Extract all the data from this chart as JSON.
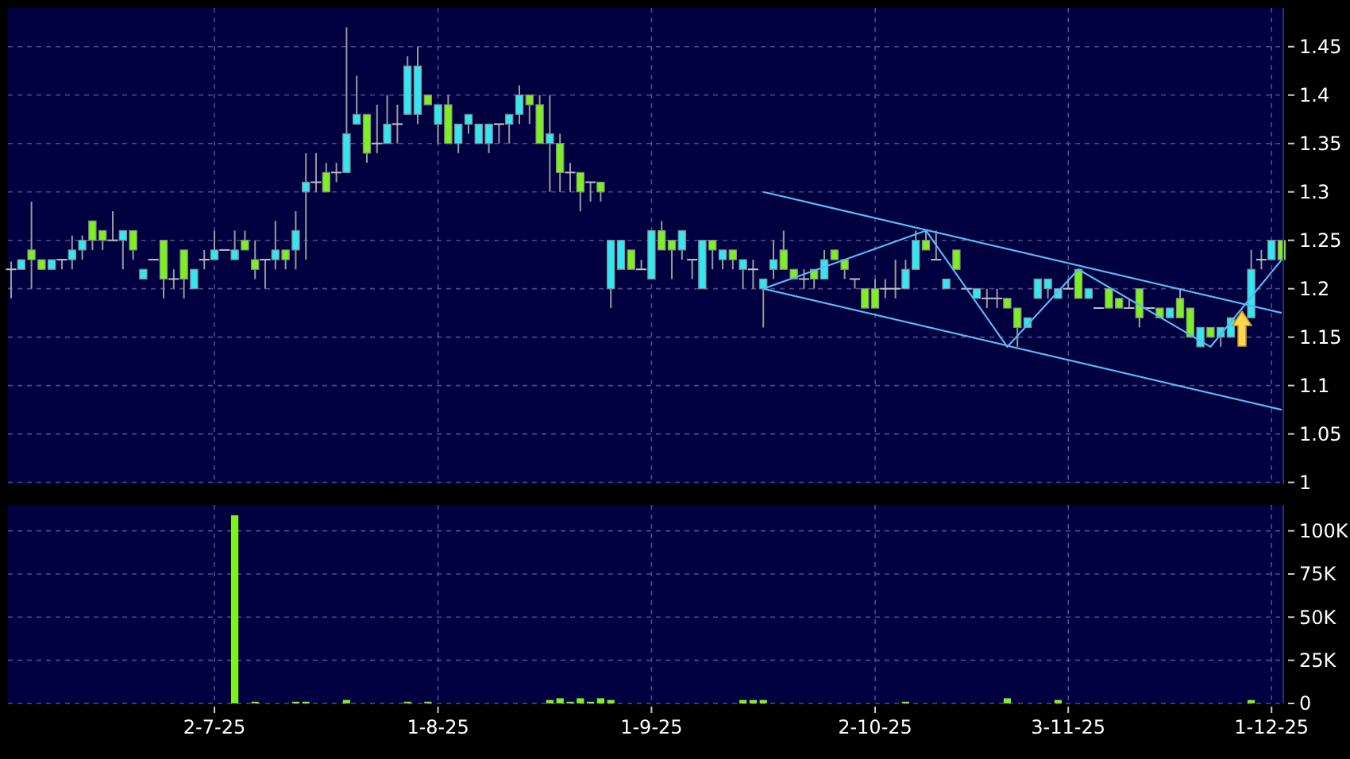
{
  "chart_data": [
    {
      "type": "candlestick",
      "categories": [
        null,
        null,
        null,
        null,
        null,
        null,
        null,
        null,
        null,
        null,
        null,
        null,
        null,
        null,
        null,
        null,
        null,
        null,
        null,
        null,
        null,
        null,
        null,
        null,
        null,
        null,
        null,
        null,
        null,
        null,
        null,
        null,
        null,
        null,
        null,
        null,
        null,
        null,
        null,
        null,
        null,
        null,
        null,
        null,
        null,
        null,
        null,
        null,
        null,
        null,
        null,
        null,
        null,
        null,
        null,
        null,
        null,
        null,
        null,
        null,
        null,
        null,
        null,
        null,
        null,
        null,
        null,
        null,
        null,
        null,
        null,
        null,
        null,
        null,
        null,
        null,
        null,
        null,
        null,
        null,
        null,
        null,
        null,
        null,
        null,
        null,
        null,
        null,
        null,
        null,
        null,
        null,
        null,
        null,
        null,
        null,
        null,
        null,
        null,
        null,
        null,
        null,
        null,
        null,
        null,
        null,
        null,
        null,
        null,
        null,
        null,
        null,
        null,
        null,
        null,
        null,
        null,
        null,
        null,
        null,
        null,
        null,
        null,
        null,
        null,
        null
      ],
      "ohlc": [
        [
          1.22,
          1.228,
          1.19,
          1.22
        ],
        [
          1.22,
          1.23,
          1.22,
          1.23
        ],
        [
          1.24,
          1.29,
          1.2,
          1.23
        ],
        [
          1.23,
          1.23,
          1.22,
          1.22
        ],
        [
          1.22,
          1.23,
          1.22,
          1.23
        ],
        [
          1.23,
          1.23,
          1.22,
          1.23
        ],
        [
          1.23,
          1.255,
          1.22,
          1.24
        ],
        [
          1.24,
          1.255,
          1.23,
          1.25
        ],
        [
          1.27,
          1.27,
          1.24,
          1.25
        ],
        [
          1.26,
          1.26,
          1.24,
          1.25
        ],
        [
          1.25,
          1.28,
          1.25,
          1.25
        ],
        [
          1.25,
          1.26,
          1.22,
          1.26
        ],
        [
          1.26,
          1.26,
          1.23,
          1.24
        ],
        [
          1.21,
          1.22,
          1.21,
          1.22
        ],
        [
          1.23,
          1.23,
          1.23,
          1.23
        ],
        [
          1.25,
          1.25,
          1.19,
          1.21
        ],
        [
          1.21,
          1.22,
          1.2,
          1.21
        ],
        [
          1.24,
          1.24,
          1.19,
          1.21
        ],
        [
          1.2,
          1.22,
          1.2,
          1.22
        ],
        [
          1.23,
          1.24,
          1.22,
          1.23
        ],
        [
          1.23,
          1.26,
          1.23,
          1.24
        ],
        [
          1.24,
          1.24,
          1.24,
          1.24
        ],
        [
          1.23,
          1.26,
          1.23,
          1.24
        ],
        [
          1.25,
          1.26,
          1.24,
          1.24
        ],
        [
          1.23,
          1.25,
          1.21,
          1.22
        ],
        [
          1.23,
          1.23,
          1.2,
          1.23
        ],
        [
          1.23,
          1.27,
          1.22,
          1.24
        ],
        [
          1.24,
          1.24,
          1.22,
          1.23
        ],
        [
          1.24,
          1.28,
          1.22,
          1.26
        ],
        [
          1.3,
          1.34,
          1.23,
          1.31
        ],
        [
          1.31,
          1.34,
          1.3,
          1.31
        ],
        [
          1.32,
          1.33,
          1.3,
          1.3
        ],
        [
          1.32,
          1.33,
          1.31,
          1.32
        ],
        [
          1.32,
          1.47,
          1.32,
          1.36
        ],
        [
          1.37,
          1.42,
          1.37,
          1.38
        ],
        [
          1.38,
          1.38,
          1.33,
          1.34
        ],
        [
          1.35,
          1.39,
          1.34,
          1.35
        ],
        [
          1.35,
          1.4,
          1.35,
          1.37
        ],
        [
          1.37,
          1.39,
          1.35,
          1.37
        ],
        [
          1.38,
          1.44,
          1.38,
          1.43
        ],
        [
          1.38,
          1.45,
          1.37,
          1.43
        ],
        [
          1.4,
          1.4,
          1.39,
          1.39
        ],
        [
          1.37,
          1.39,
          1.35,
          1.39
        ],
        [
          1.39,
          1.4,
          1.35,
          1.35
        ],
        [
          1.35,
          1.37,
          1.34,
          1.37
        ],
        [
          1.37,
          1.38,
          1.36,
          1.38
        ],
        [
          1.35,
          1.37,
          1.35,
          1.37
        ],
        [
          1.35,
          1.37,
          1.34,
          1.37
        ],
        [
          1.37,
          1.37,
          1.35,
          1.37
        ],
        [
          1.37,
          1.38,
          1.35,
          1.38
        ],
        [
          1.38,
          1.41,
          1.37,
          1.4
        ],
        [
          1.4,
          1.4,
          1.37,
          1.39
        ],
        [
          1.39,
          1.4,
          1.35,
          1.35
        ],
        [
          1.35,
          1.4,
          1.3,
          1.36
        ],
        [
          1.35,
          1.36,
          1.3,
          1.32
        ],
        [
          1.32,
          1.33,
          1.3,
          1.32
        ],
        [
          1.32,
          1.32,
          1.28,
          1.3
        ],
        [
          1.31,
          1.31,
          1.29,
          1.31
        ],
        [
          1.31,
          1.31,
          1.29,
          1.3
        ],
        [
          1.2,
          1.25,
          1.18,
          1.25
        ],
        [
          1.22,
          1.25,
          1.22,
          1.25
        ],
        [
          1.24,
          1.24,
          1.22,
          1.22
        ],
        [
          1.22,
          1.23,
          1.22,
          1.22
        ],
        [
          1.21,
          1.26,
          1.21,
          1.26
        ],
        [
          1.26,
          1.27,
          1.24,
          1.24
        ],
        [
          1.25,
          1.25,
          1.21,
          1.24
        ],
        [
          1.24,
          1.26,
          1.23,
          1.26
        ],
        [
          1.23,
          1.23,
          1.21,
          1.23
        ],
        [
          1.2,
          1.25,
          1.2,
          1.25
        ],
        [
          1.25,
          1.25,
          1.22,
          1.24
        ],
        [
          1.23,
          1.24,
          1.22,
          1.24
        ],
        [
          1.24,
          1.24,
          1.22,
          1.23
        ],
        [
          1.22,
          1.23,
          1.2,
          1.23
        ],
        [
          1.22,
          1.23,
          1.2,
          1.22
        ],
        [
          1.2,
          1.21,
          1.16,
          1.21
        ],
        [
          1.22,
          1.25,
          1.21,
          1.23
        ],
        [
          1.24,
          1.26,
          1.22,
          1.22
        ],
        [
          1.22,
          1.22,
          1.21,
          1.21
        ],
        [
          1.21,
          1.22,
          1.2,
          1.21
        ],
        [
          1.22,
          1.22,
          1.2,
          1.21
        ],
        [
          1.21,
          1.24,
          1.21,
          1.23
        ],
        [
          1.24,
          1.24,
          1.23,
          1.23
        ],
        [
          1.23,
          1.23,
          1.21,
          1.22
        ],
        [
          1.21,
          1.21,
          1.2,
          1.21
        ],
        [
          1.2,
          1.2,
          1.18,
          1.18
        ],
        [
          1.2,
          1.21,
          1.18,
          1.18
        ],
        [
          1.2,
          1.21,
          1.19,
          1.2
        ],
        [
          1.2,
          1.23,
          1.19,
          1.2
        ],
        [
          1.2,
          1.23,
          1.2,
          1.22
        ],
        [
          1.22,
          1.26,
          1.22,
          1.25
        ],
        [
          1.25,
          1.26,
          1.24,
          1.24
        ],
        [
          1.23,
          1.26,
          1.23,
          1.23
        ],
        [
          1.2,
          1.21,
          1.2,
          1.21
        ],
        [
          1.24,
          1.24,
          1.22,
          1.22
        ],
        [
          1.2,
          1.2,
          1.2,
          1.2
        ],
        [
          1.19,
          1.2,
          1.19,
          1.2
        ],
        [
          1.19,
          1.2,
          1.18,
          1.19
        ],
        [
          1.19,
          1.2,
          1.18,
          1.19
        ],
        [
          1.19,
          1.19,
          1.18,
          1.18
        ],
        [
          1.18,
          1.18,
          1.14,
          1.16
        ],
        [
          1.16,
          1.17,
          1.16,
          1.17
        ],
        [
          1.19,
          1.21,
          1.19,
          1.21
        ],
        [
          1.2,
          1.21,
          1.19,
          1.21
        ],
        [
          1.19,
          1.2,
          1.19,
          1.2
        ],
        [
          1.2,
          1.21,
          1.2,
          1.2
        ],
        [
          1.22,
          1.22,
          1.19,
          1.19
        ],
        [
          1.19,
          1.2,
          1.19,
          1.2
        ],
        [
          1.18,
          1.18,
          1.18,
          1.18
        ],
        [
          1.2,
          1.2,
          1.18,
          1.18
        ],
        [
          1.19,
          1.19,
          1.18,
          1.18
        ],
        [
          1.18,
          1.19,
          1.18,
          1.18
        ],
        [
          1.2,
          1.2,
          1.16,
          1.17
        ],
        [
          1.18,
          1.18,
          1.18,
          1.18
        ],
        [
          1.18,
          1.18,
          1.17,
          1.17
        ],
        [
          1.17,
          1.18,
          1.17,
          1.18
        ],
        [
          1.19,
          1.2,
          1.17,
          1.17
        ],
        [
          1.18,
          1.18,
          1.15,
          1.15
        ],
        [
          1.14,
          1.16,
          1.14,
          1.16
        ],
        [
          1.16,
          1.16,
          1.15,
          1.15
        ],
        [
          1.15,
          1.16,
          1.14,
          1.16
        ],
        [
          1.15,
          1.17,
          1.15,
          1.17
        ],
        null,
        [
          1.17,
          1.24,
          1.17,
          1.22
        ],
        [
          1.23,
          1.24,
          1.22,
          1.23
        ],
        [
          1.23,
          1.25,
          1.23,
          1.25
        ],
        [
          1.25,
          1.25,
          1.23,
          1.23
        ]
      ],
      "colors": [
        "#c0c0c0",
        "#33e6f0",
        "#7cf020",
        "#7cf020",
        "#33e6f0",
        "#c0c0c0",
        "#33e6f0",
        "#33e6f0",
        "#7cf020",
        "#7cf020",
        "#c0c0c0",
        "#33e6f0",
        "#7cf020",
        "#33e6f0",
        "#c0c0c0",
        "#7cf020",
        "#c0c0c0",
        "#7cf020",
        "#33e6f0",
        "#c0c0c0",
        "#33e6f0",
        "#c0c0c0",
        "#33e6f0",
        "#7cf020",
        "#7cf020",
        "#c0c0c0",
        "#33e6f0",
        "#7cf020",
        "#33e6f0",
        "#33e6f0",
        "#c0c0c0",
        "#7cf020",
        "#c0c0c0",
        "#33e6f0",
        "#33e6f0",
        "#7cf020",
        "#c0c0c0",
        "#33e6f0",
        "#c0c0c0",
        "#33e6f0",
        "#33e6f0",
        "#7cf020",
        "#33e6f0",
        "#7cf020",
        "#33e6f0",
        "#33e6f0",
        "#33e6f0",
        "#33e6f0",
        "#c0c0c0",
        "#33e6f0",
        "#33e6f0",
        "#7cf020",
        "#7cf020",
        "#33e6f0",
        "#7cf020",
        "#c0c0c0",
        "#7cf020",
        "#c0c0c0",
        "#7cf020",
        "#33e6f0",
        "#33e6f0",
        "#7cf020",
        "#c0c0c0",
        "#33e6f0",
        "#7cf020",
        "#7cf020",
        "#33e6f0",
        "#c0c0c0",
        "#33e6f0",
        "#7cf020",
        "#33e6f0",
        "#7cf020",
        "#33e6f0",
        "#c0c0c0",
        "#33e6f0",
        "#33e6f0",
        "#7cf020",
        "#7cf020",
        "#c0c0c0",
        "#7cf020",
        "#33e6f0",
        "#7cf020",
        "#7cf020",
        "#c0c0c0",
        "#7cf020",
        "#7cf020",
        "#c0c0c0",
        "#c0c0c0",
        "#33e6f0",
        "#33e6f0",
        "#7cf020",
        "#c0c0c0",
        "#33e6f0",
        "#7cf020",
        "#c0c0c0",
        "#33e6f0",
        "#c0c0c0",
        "#c0c0c0",
        "#7cf020",
        "#7cf020",
        "#33e6f0",
        "#33e6f0",
        "#33e6f0",
        "#33e6f0",
        "#c0c0c0",
        "#7cf020",
        "#33e6f0",
        "#c0c0c0",
        "#7cf020",
        "#7cf020",
        "#c0c0c0",
        "#7cf020",
        "#c0c0c0",
        "#7cf020",
        "#33e6f0",
        "#7cf020",
        "#7cf020",
        "#33e6f0",
        "#7cf020",
        "#33e6f0",
        "#33e6f0",
        null,
        "#33e6f0",
        "#c0c0c0",
        "#33e6f0",
        "#7cf020"
      ],
      "series": [
        {
          "type": "line",
          "color": "#5ab8f0",
          "values": [
            null,
            null,
            null,
            null,
            null,
            null,
            null,
            null,
            null,
            null,
            null,
            null,
            null,
            null,
            null,
            null,
            null,
            null,
            null,
            null,
            null,
            null,
            null,
            null,
            null,
            null,
            null,
            null,
            null,
            null,
            null,
            null,
            null,
            null,
            null,
            null,
            null,
            null,
            null,
            null,
            null,
            null,
            null,
            null,
            null,
            null,
            null,
            null,
            null,
            null,
            null,
            null,
            null,
            null,
            null,
            null,
            null,
            null,
            null,
            null,
            null,
            null,
            null,
            null,
            null,
            null,
            null,
            null,
            null,
            null,
            null,
            null,
            null,
            null,
            1.3,
            null,
            null,
            null,
            null,
            null,
            null,
            null,
            null,
            null,
            null,
            null,
            null,
            null,
            null,
            null,
            null,
            null,
            null,
            null,
            null,
            null,
            null,
            null,
            null,
            null,
            null,
            null,
            null,
            null,
            null,
            null,
            null,
            null,
            null,
            null,
            null,
            null,
            null,
            null,
            null,
            null,
            null,
            null,
            null,
            null,
            null,
            null,
            null,
            null,
            null,
            1.175
          ]
        },
        {
          "type": "line",
          "color": "#5ab8f0",
          "values": [
            null,
            null,
            null,
            null,
            null,
            null,
            null,
            null,
            null,
            null,
            null,
            null,
            null,
            null,
            null,
            null,
            null,
            null,
            null,
            null,
            null,
            null,
            null,
            null,
            null,
            null,
            null,
            null,
            null,
            null,
            null,
            null,
            null,
            null,
            null,
            null,
            null,
            null,
            null,
            null,
            null,
            null,
            null,
            null,
            null,
            null,
            null,
            null,
            null,
            null,
            null,
            null,
            null,
            null,
            null,
            null,
            null,
            null,
            null,
            null,
            null,
            null,
            null,
            null,
            null,
            null,
            null,
            null,
            null,
            null,
            null,
            null,
            null,
            null,
            1.2,
            null,
            null,
            null,
            null,
            null,
            null,
            null,
            null,
            null,
            null,
            null,
            null,
            null,
            null,
            null,
            null,
            null,
            null,
            null,
            null,
            null,
            null,
            null,
            null,
            null,
            null,
            null,
            null,
            null,
            null,
            null,
            null,
            null,
            null,
            null,
            null,
            null,
            null,
            null,
            null,
            null,
            null,
            null,
            null,
            null,
            null,
            null,
            null,
            null,
            null,
            1.075
          ]
        },
        {
          "type": "line",
          "color": "#5ab8f0",
          "values": [
            null,
            null,
            null,
            null,
            null,
            null,
            null,
            null,
            null,
            null,
            null,
            null,
            null,
            null,
            null,
            null,
            null,
            null,
            null,
            null,
            null,
            null,
            null,
            null,
            null,
            null,
            null,
            null,
            null,
            null,
            null,
            null,
            null,
            null,
            null,
            null,
            null,
            null,
            null,
            null,
            null,
            null,
            null,
            null,
            null,
            null,
            null,
            null,
            null,
            null,
            null,
            null,
            null,
            null,
            null,
            null,
            null,
            null,
            null,
            null,
            null,
            null,
            null,
            null,
            null,
            null,
            null,
            null,
            null,
            null,
            null,
            null,
            null,
            null,
            1.2,
            null,
            null,
            null,
            null,
            null,
            null,
            null,
            null,
            null,
            null,
            null,
            null,
            null,
            null,
            null,
            1.26,
            null,
            null,
            null,
            null,
            null,
            null,
            null,
            1.14,
            null,
            null,
            null,
            null,
            null,
            null,
            1.22,
            null,
            null,
            null,
            null,
            null,
            null,
            null,
            null,
            null,
            null,
            null,
            null,
            1.14,
            null,
            null,
            null,
            null,
            null,
            null,
            1.23
          ]
        }
      ],
      "ylim": [
        0.998,
        1.49
      ],
      "yticks": [
        1,
        1.05,
        1.1,
        1.15,
        1.2,
        1.25,
        1.3,
        1.35,
        1.4,
        1.45
      ],
      "grid": true,
      "tick_labels": "y"
    },
    {
      "type": "bar",
      "categories": [
        null,
        null,
        null,
        null,
        null,
        null,
        null,
        null,
        null,
        null,
        null,
        null,
        null,
        null,
        null,
        null,
        null,
        null,
        null,
        null,
        "2-7-25",
        null,
        null,
        null,
        null,
        null,
        null,
        null,
        null,
        null,
        null,
        null,
        null,
        null,
        null,
        null,
        null,
        null,
        null,
        null,
        null,
        null,
        "1-8-25",
        null,
        null,
        null,
        null,
        null,
        null,
        null,
        null,
        null,
        null,
        null,
        null,
        null,
        null,
        null,
        null,
        null,
        null,
        null,
        null,
        "1-9-25",
        null,
        null,
        null,
        null,
        null,
        null,
        null,
        null,
        null,
        null,
        null,
        null,
        null,
        null,
        null,
        null,
        null,
        null,
        null,
        null,
        null,
        "2-10-25",
        null,
        null,
        null,
        null,
        null,
        null,
        null,
        null,
        null,
        null,
        null,
        null,
        null,
        null,
        null,
        null,
        null,
        null,
        "3-11-25",
        null,
        null,
        null,
        null,
        null,
        null,
        null,
        null,
        null,
        null,
        null,
        null,
        null,
        null,
        null,
        null,
        null,
        null,
        null,
        "1-12-25",
        null
      ],
      "values": [
        0,
        0,
        0,
        0,
        0,
        0,
        0,
        0,
        0,
        0,
        0,
        0,
        0,
        0,
        0,
        0,
        0,
        0,
        0,
        0,
        0,
        0,
        109000,
        0,
        1000,
        0,
        0,
        0,
        1000,
        1000,
        0,
        0,
        0,
        2000,
        0,
        0,
        0,
        0,
        0,
        1000,
        0,
        1000,
        0,
        0,
        0,
        0,
        0,
        0,
        0,
        0,
        0,
        0,
        0,
        2000,
        3000,
        1000,
        3000,
        1000,
        3000,
        2000,
        0,
        0,
        0,
        0,
        0,
        0,
        0,
        0,
        0,
        0,
        0,
        0,
        2000,
        2000,
        2000,
        0,
        0,
        0,
        0,
        0,
        0,
        0,
        0,
        0,
        0,
        0,
        0,
        0,
        1000,
        0,
        0,
        0,
        0,
        0,
        0,
        0,
        0,
        0,
        3000,
        0,
        0,
        0,
        0,
        2000,
        0,
        0,
        0,
        0,
        0,
        0,
        0,
        0,
        0,
        0,
        0,
        0,
        0,
        0,
        0,
        0,
        0,
        0,
        2000,
        0,
        0,
        0
      ],
      "color": "#7cf020",
      "ylim": [
        0,
        115000
      ],
      "yticks": [
        0,
        {
          "value": 25000,
          "label": "25K"
        },
        {
          "value": 50000,
          "label": "50K"
        },
        {
          "value": 75000,
          "label": "75K"
        },
        {
          "value": 100000,
          "label": "100K"
        }
      ],
      "grid": true
    }
  ]
}
